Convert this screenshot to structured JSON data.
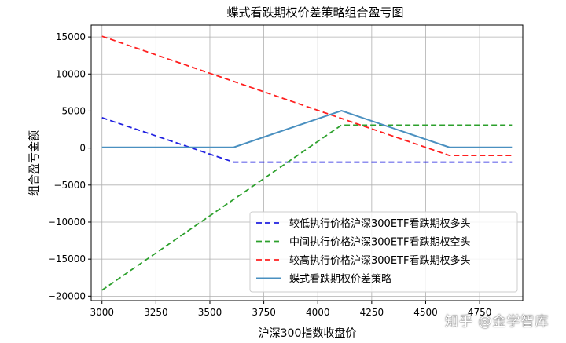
{
  "chart_data": {
    "type": "line",
    "title": "蝶式看跌期权价差策略组合盈亏图",
    "xlabel": "沪深300指数收盘价",
    "ylabel": "组合盈亏金额",
    "xlim": [
      2950,
      4950
    ],
    "ylim": [
      -20600,
      16600
    ],
    "xticks": [
      3000,
      3250,
      3500,
      3750,
      4000,
      4250,
      4500,
      4750
    ],
    "yticks": [
      -20000,
      -15000,
      -10000,
      -5000,
      0,
      5000,
      10000,
      15000
    ],
    "grid": true,
    "legend_position": "lower-right",
    "series": [
      {
        "name": "较低执行价格沪深300ETF看跌期权多头",
        "color": "#2020e0",
        "dash": "dashed",
        "x": [
          3000,
          3610,
          4900
        ],
        "y": [
          4100,
          -1900,
          -1900
        ]
      },
      {
        "name": "中间执行价格沪深300ETF看跌期权空头",
        "color": "#2ca02c",
        "dash": "dashed",
        "x": [
          3000,
          4110,
          4900
        ],
        "y": [
          -19200,
          3100,
          3100
        ]
      },
      {
        "name": "较高执行价格沪深300ETF看跌期权多头",
        "color": "#ff2020",
        "dash": "dashed",
        "x": [
          3000,
          4610,
          4900
        ],
        "y": [
          15100,
          -1000,
          -1000
        ]
      },
      {
        "name": "蝶式看跌期权价差策略",
        "color": "#4a90c0",
        "dash": "solid",
        "x": [
          3000,
          3610,
          4110,
          4610,
          4900
        ],
        "y": [
          100,
          100,
          5050,
          100,
          100
        ]
      }
    ]
  },
  "watermark": "知乎 @金学智库"
}
